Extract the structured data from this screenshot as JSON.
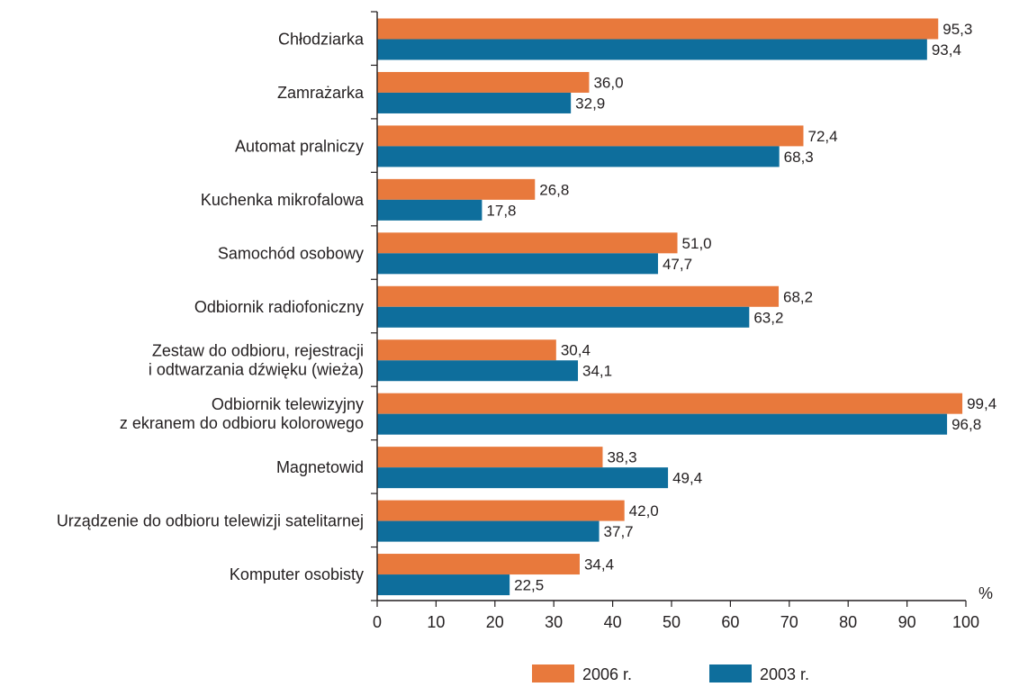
{
  "chart_data": {
    "type": "bar",
    "orientation": "horizontal",
    "categories": [
      [
        "Chłodziarka"
      ],
      [
        "Zamrażarka"
      ],
      [
        "Automat pralniczy"
      ],
      [
        "Kuchenka mikrofalowa"
      ],
      [
        "Samochód osobowy"
      ],
      [
        "Odbiornik radiofoniczny"
      ],
      [
        "Zestaw do odbioru, rejestracji",
        "i odtwarzania dźwięku (wieża)"
      ],
      [
        "Odbiornik telewizyjny",
        "z ekranem do odbioru kolorowego"
      ],
      [
        "Magnetowid"
      ],
      [
        "Urządzenie do odbioru telewizji satelitarnej"
      ],
      [
        "Komputer osobisty"
      ]
    ],
    "series": [
      {
        "name": "2006 r.",
        "color": "#e8793c",
        "values": [
          95.3,
          36.0,
          72.4,
          26.8,
          51.0,
          68.2,
          30.4,
          99.4,
          38.3,
          42.0,
          34.4
        ],
        "labels": [
          "95,3",
          "36,0",
          "72,4",
          "26,8",
          "51,0",
          "68,2",
          "30,4",
          "99,4",
          "38,3",
          "42,0",
          "34,4"
        ]
      },
      {
        "name": "2003 r.",
        "color": "#0e6e9c",
        "values": [
          93.4,
          32.9,
          68.3,
          17.8,
          47.7,
          63.2,
          34.1,
          96.8,
          49.4,
          37.7,
          22.5
        ],
        "labels": [
          "93,4",
          "32,9",
          "68,3",
          "17,8",
          "47,7",
          "63,2",
          "34,1",
          "96,8",
          "49,4",
          "37,7",
          "22,5"
        ]
      }
    ],
    "xlim": [
      0,
      100
    ],
    "xticks": [
      0,
      10,
      20,
      30,
      40,
      50,
      60,
      70,
      80,
      90,
      100
    ],
    "x_unit": "%",
    "title": "",
    "xlabel": "",
    "ylabel": "",
    "grid": false,
    "legend_position": "bottom-right"
  }
}
